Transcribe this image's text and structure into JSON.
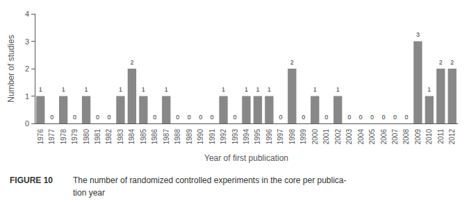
{
  "chart_data": {
    "type": "bar",
    "categories": [
      1976,
      1977,
      1978,
      1979,
      1980,
      1981,
      1982,
      1983,
      1984,
      1985,
      1986,
      1987,
      1988,
      1989,
      1990,
      1991,
      1992,
      1993,
      1994,
      1995,
      1996,
      1997,
      1998,
      1999,
      2000,
      2001,
      2002,
      2003,
      2004,
      2005,
      2006,
      2007,
      2008,
      2009,
      2010,
      2011,
      2012
    ],
    "values": [
      1,
      0,
      1,
      0,
      1,
      0,
      0,
      1,
      2,
      1,
      0,
      1,
      0,
      0,
      0,
      0,
      1,
      0,
      1,
      1,
      1,
      0,
      2,
      0,
      1,
      0,
      1,
      0,
      0,
      0,
      0,
      0,
      0,
      3,
      1,
      2,
      2
    ],
    "color": "#888888",
    "xlabel": "Year of first publication",
    "ylabel": "Number of studies",
    "ylim": [
      0,
      4
    ],
    "yticks": [
      0,
      1,
      2,
      3,
      4
    ],
    "grid": false,
    "data_labels": true,
    "annotations": [
      "FIGURE 10",
      "The number of randomized controlled experiments in the core per publica-",
      "tion year"
    ]
  }
}
